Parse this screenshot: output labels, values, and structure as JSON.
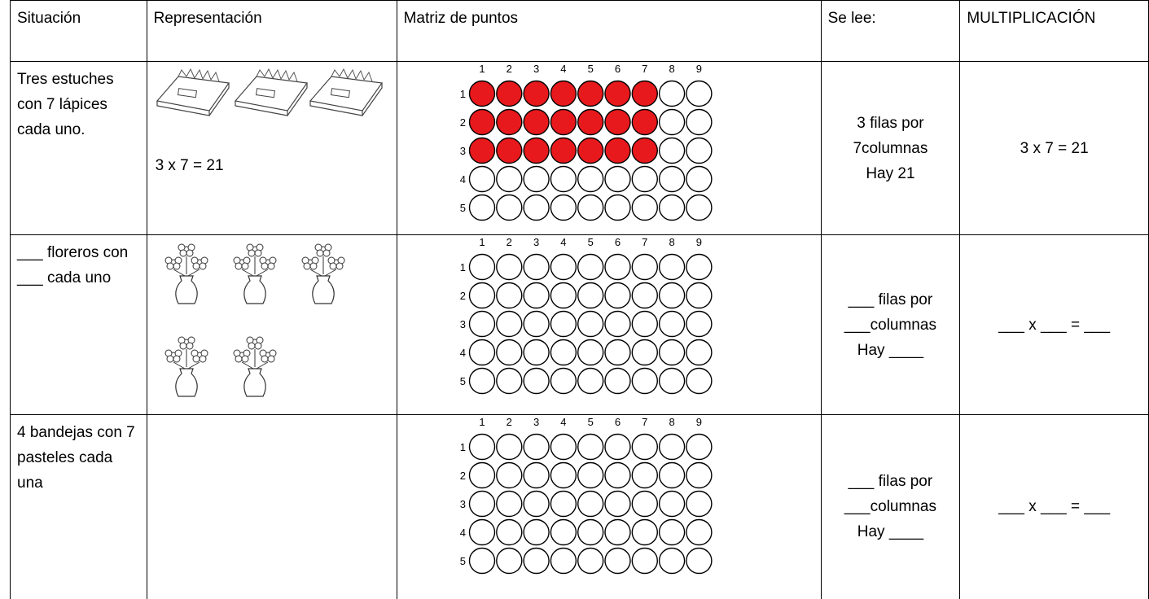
{
  "header": [
    "Situación",
    "Representación",
    "Matriz de puntos",
    "Se lee:",
    "MULTIPLICACIÓN"
  ],
  "rows": [
    {
      "situation": "Tres estuches con 7 lápices cada uno.",
      "representation": "3 x 7 = 21",
      "matrix": {
        "column_labels": [
          1,
          2,
          3,
          4,
          5,
          6,
          7,
          8,
          9
        ],
        "row_labels": [
          1,
          2,
          3,
          4,
          5
        ],
        "filled_rows": 3,
        "filled_columns": 7,
        "fill_color": "#e8191c"
      },
      "reading": [
        "3 filas por",
        "7columnas",
        "Hay 21"
      ],
      "multiplication": "3 x 7 = 21"
    },
    {
      "situation": "___ floreros con ___ cada uno",
      "matrix": {
        "column_labels": [
          1,
          2,
          3,
          4,
          5,
          6,
          7,
          8,
          9
        ],
        "row_labels": [
          1,
          2,
          3,
          4,
          5
        ]
      },
      "reading": [
        "___ filas por",
        "___columnas",
        "Hay ____"
      ],
      "multiplication": "___ x ___ = ___"
    },
    {
      "situation": "4 bandejas con 7 pasteles cada una",
      "matrix": {
        "column_labels": [
          1,
          2,
          3,
          4,
          5,
          6,
          7,
          8,
          9
        ],
        "row_labels": [
          1,
          2,
          3,
          4,
          5
        ]
      },
      "reading": [
        "___ filas por",
        "___columnas",
        "Hay ____"
      ],
      "multiplication": "___ x ___ = ___"
    }
  ]
}
